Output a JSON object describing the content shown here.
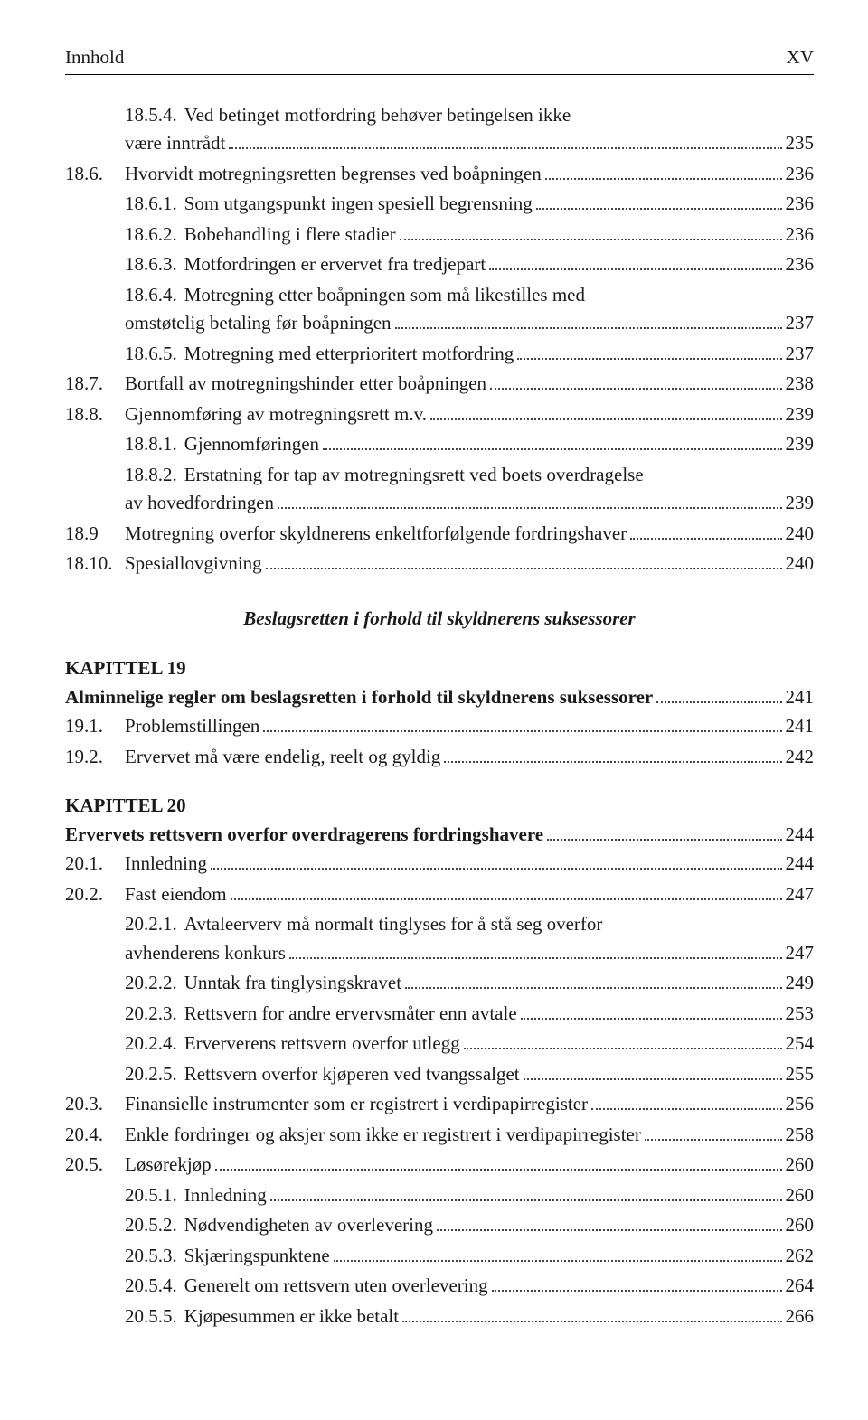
{
  "header": {
    "left": "Innhold",
    "right": "XV"
  },
  "entries": [
    {
      "num": "",
      "sub": "18.5.4.",
      "title": "Ved betinget motfordring behøver betingelsen ikke",
      "cont": "være inntrådt",
      "page": "235"
    },
    {
      "num": "18.6.",
      "title": "Hvorvidt motregningsretten begrenses ved boåpningen",
      "page": "236"
    },
    {
      "num": "",
      "sub": "18.6.1.",
      "title": "Som utgangspunkt ingen spesiell begrensning",
      "page": "236"
    },
    {
      "num": "",
      "sub": "18.6.2.",
      "title": "Bobehandling i flere stadier",
      "page": "236"
    },
    {
      "num": "",
      "sub": "18.6.3.",
      "title": "Motfordringen er ervervet fra tredjepart",
      "page": "236"
    },
    {
      "num": "",
      "sub": "18.6.4.",
      "title": "Motregning etter boåpningen som må likestilles med",
      "cont": "omstøtelig betaling før boåpningen",
      "page": "237"
    },
    {
      "num": "",
      "sub": "18.6.5.",
      "title": "Motregning med etterprioritert motfordring",
      "page": "237"
    },
    {
      "num": "18.7.",
      "title": "Bortfall av motregningshinder etter boåpningen",
      "page": "238"
    },
    {
      "num": "18.8.",
      "title": "Gjennomføring av motregningsrett m.v.",
      "page": "239"
    },
    {
      "num": "",
      "sub": "18.8.1.",
      "title": "Gjennomføringen",
      "page": "239"
    },
    {
      "num": "",
      "sub": "18.8.2.",
      "title": "Erstatning for tap av motregningsrett ved boets overdragelse",
      "cont": "av hovedfordringen",
      "page": "239"
    },
    {
      "num": "18.9",
      "title": "Motregning overfor skyldnerens enkeltforfølgende fordringshaver",
      "page": "240"
    },
    {
      "num": "18.10.",
      "title": "Spesiallovgivning",
      "page": "240"
    }
  ],
  "section_heading": "Beslagsretten i forhold til skyldnerens suksessorer",
  "chapter19": {
    "label": "KAPITTEL 19",
    "title": "Alminnelige regler om beslagsretten i forhold til skyldnerens suksessorer",
    "page": "241",
    "entries": [
      {
        "num": "19.1.",
        "title": "Problemstillingen",
        "page": "241"
      },
      {
        "num": "19.2.",
        "title": "Ervervet må være endelig, reelt og gyldig",
        "page": "242"
      }
    ]
  },
  "chapter20": {
    "label": "KAPITTEL 20",
    "title": "Ervervets rettsvern overfor overdragerens fordringshavere",
    "page": "244",
    "entries": [
      {
        "num": "20.1.",
        "title": "Innledning",
        "page": "244"
      },
      {
        "num": "20.2.",
        "title": "Fast eiendom",
        "page": "247"
      },
      {
        "num": "",
        "sub": "20.2.1.",
        "title": "Avtaleerverv må normalt tinglyses for å stå seg overfor",
        "cont": "avhenderens konkurs",
        "page": "247"
      },
      {
        "num": "",
        "sub": "20.2.2.",
        "title": "Unntak fra tinglysingskravet",
        "page": "249"
      },
      {
        "num": "",
        "sub": "20.2.3.",
        "title": "Rettsvern for andre ervervsmåter enn avtale",
        "page": "253"
      },
      {
        "num": "",
        "sub": "20.2.4.",
        "title": "Erververens rettsvern overfor utlegg",
        "page": "254"
      },
      {
        "num": "",
        "sub": "20.2.5.",
        "title": "Rettsvern overfor kjøperen ved tvangssalget",
        "page": "255"
      },
      {
        "num": "20.3.",
        "title": "Finansielle instrumenter som er registrert i verdipapirregister",
        "page": "256"
      },
      {
        "num": "20.4.",
        "title": "Enkle fordringer og aksjer som ikke er registrert i verdipapirregister",
        "page": "258"
      },
      {
        "num": "20.5.",
        "title": "Løsørekjøp",
        "page": "260"
      },
      {
        "num": "",
        "sub": "20.5.1.",
        "title": "Innledning",
        "page": "260"
      },
      {
        "num": "",
        "sub": "20.5.2.",
        "title": "Nødvendigheten av overlevering",
        "page": "260"
      },
      {
        "num": "",
        "sub": "20.5.3.",
        "title": "Skjæringspunktene",
        "page": "262"
      },
      {
        "num": "",
        "sub": "20.5.4.",
        "title": "Generelt om rettsvern uten overlevering",
        "page": "264"
      },
      {
        "num": "",
        "sub": "20.5.5.",
        "title": "Kjøpesummen er ikke betalt",
        "page": "266"
      }
    ]
  }
}
